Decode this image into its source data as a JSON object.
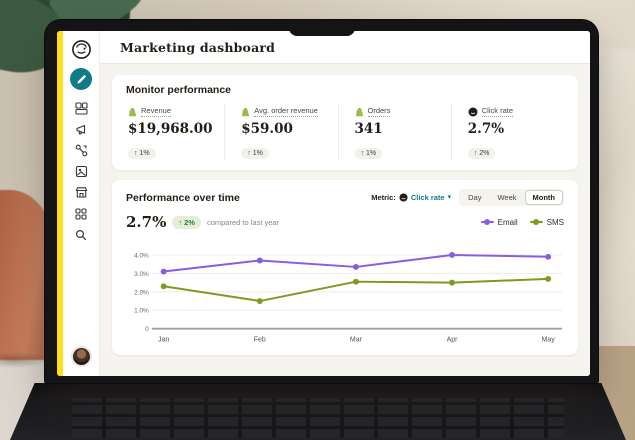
{
  "window": {
    "title": "Marketing dashboard"
  },
  "icons": {
    "up_arrow": "↑",
    "chevron_down": "▾"
  },
  "sidebar": {
    "items": [
      "mailchimp-logo",
      "create-button",
      "campaigns-icon",
      "audience-icon",
      "automations-icon",
      "content-icon",
      "store-icon",
      "apps-icon",
      "search-icon",
      "user-avatar"
    ]
  },
  "monitor": {
    "title": "Monitor performance",
    "cards": [
      {
        "label": "Revenue",
        "value": "$19,968.00",
        "trend": "1%",
        "source_icon": "shopify-bag-icon"
      },
      {
        "label": "Avg. order revenue",
        "value": "$59.00",
        "trend": "1%",
        "source_icon": "shopify-bag-icon"
      },
      {
        "label": "Orders",
        "value": "341",
        "trend": "1%",
        "source_icon": "shopify-bag-icon"
      },
      {
        "label": "Click rate",
        "value": "2.7%",
        "trend": "2%",
        "source_icon": "mailchimp-icon"
      }
    ]
  },
  "performance": {
    "title": "Performance over time",
    "stat": "2.7%",
    "stat_trend": "2%",
    "caption": "compared to last year",
    "metric_label": "Metric:",
    "metric_value": "Click rate",
    "ranges": [
      "Day",
      "Week",
      "Month"
    ],
    "range_selected": "Month"
  },
  "chart_data": {
    "type": "line",
    "x": [
      "Jan",
      "Feb",
      "Mar",
      "Apr",
      "May"
    ],
    "series": [
      {
        "name": "Email",
        "color": "#8a5ce0",
        "values": [
          3.1,
          3.7,
          3.35,
          4.0,
          3.9
        ]
      },
      {
        "name": "SMS",
        "color": "#7d9b21",
        "values": [
          2.3,
          1.5,
          2.55,
          2.5,
          2.7
        ]
      }
    ],
    "unit": "%",
    "y_ticks": [
      4.0,
      3.0,
      2.0,
      1.0
    ],
    "y_tick_labels": [
      "4.0%",
      "3.0%",
      "2.0%",
      "1.0%"
    ],
    "y_zero_label": "0",
    "ylim": [
      0,
      4.6
    ],
    "grid": true,
    "legend_position": "top-right"
  },
  "colors": {
    "accent_yellow": "#ffdf1b",
    "brand_teal": "#0e7c86",
    "email_purple": "#8a5ce0",
    "sms_green": "#7d9b21",
    "trend_up_green": "#2e7d32",
    "ink": "#241c15"
  }
}
